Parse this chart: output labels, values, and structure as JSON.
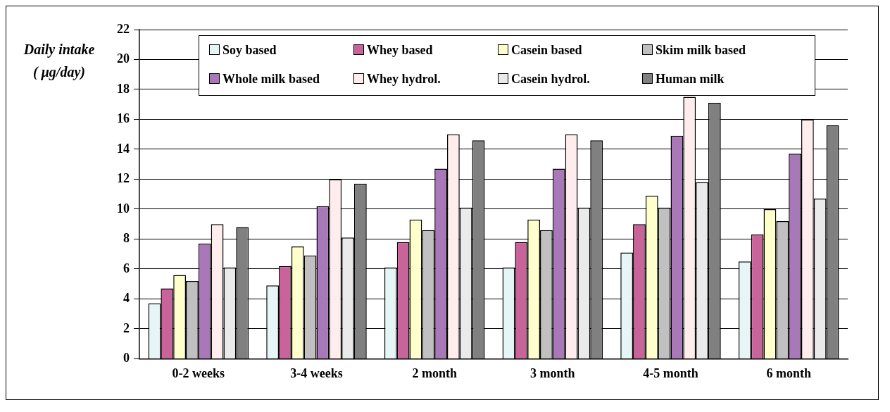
{
  "chart_data": {
    "type": "bar",
    "ylabel": "Daily intake\n( μg/day)",
    "categories": [
      "0-2 weeks",
      "3-4 weeks",
      "2 month",
      "3 month",
      "4-5 month",
      "6 month"
    ],
    "series": [
      {
        "name": "Soy based",
        "color": "#e6f5f5",
        "values": [
          3.7,
          4.9,
          6.1,
          6.1,
          7.1,
          6.5
        ]
      },
      {
        "name": "Whey based",
        "color": "#c8649a",
        "values": [
          4.7,
          6.2,
          7.8,
          7.8,
          9.0,
          8.3
        ]
      },
      {
        "name": "Casein based",
        "color": "#ffffcc",
        "values": [
          5.6,
          7.5,
          9.3,
          9.3,
          10.9,
          10.0
        ]
      },
      {
        "name": "Skim milk based",
        "color": "#c0c0c0",
        "values": [
          5.2,
          6.9,
          8.6,
          8.6,
          10.1,
          9.2
        ]
      },
      {
        "name": "Whole milk based",
        "color": "#a878b8",
        "values": [
          7.7,
          10.2,
          12.7,
          12.7,
          14.9,
          13.7
        ]
      },
      {
        "name": "Whey hydrol.",
        "color": "#ffecec",
        "values": [
          9.0,
          12.0,
          15.0,
          15.0,
          17.5,
          16.0
        ]
      },
      {
        "name": "Casein hydrol.",
        "color": "#eaeaea",
        "values": [
          6.1,
          8.1,
          10.1,
          10.1,
          11.8,
          10.7
        ]
      },
      {
        "name": "Human milk",
        "color": "#808080",
        "values": [
          8.8,
          11.7,
          14.6,
          14.6,
          17.1,
          15.6
        ]
      }
    ],
    "ylim": [
      0,
      22
    ],
    "yticks": [
      0,
      2,
      4,
      6,
      8,
      10,
      12,
      14,
      16,
      18,
      20,
      22
    ],
    "grid": "y",
    "legend": "top"
  }
}
